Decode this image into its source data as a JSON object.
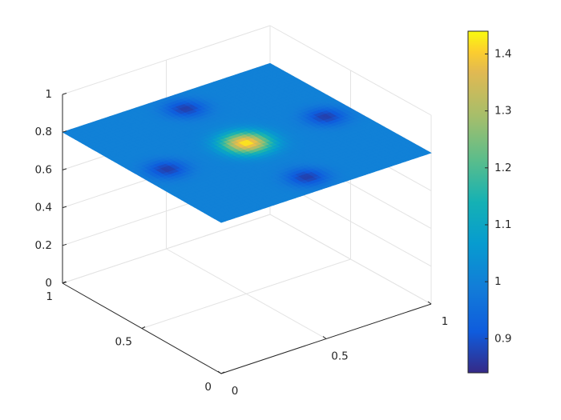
{
  "chart_data": {
    "type": "surface",
    "title": "",
    "xlabel": "",
    "ylabel": "",
    "zlabel": "",
    "x_ticks": [
      "0",
      "0.5",
      "1"
    ],
    "y_ticks": [
      "0",
      "0.5",
      "1"
    ],
    "z_ticks": [
      "0",
      "0.2",
      "0.4",
      "0.6",
      "0.8",
      "1"
    ],
    "xlim": [
      0,
      1
    ],
    "ylim": [
      0,
      1
    ],
    "zlim": [
      0,
      1
    ],
    "grid": true,
    "colormap": "parula",
    "colorbar": {
      "location": "right",
      "range": [
        0.84,
        1.44
      ],
      "ticks": [
        "0.9",
        "1",
        "1.1",
        "1.2",
        "1.3",
        "1.4"
      ]
    },
    "surface": {
      "plane_height": 0.8,
      "baseline_value": 1.0,
      "peak": {
        "x": 0.5,
        "y": 0.5,
        "value": 1.43
      },
      "dips": [
        {
          "x": 0.12,
          "y": 0.5,
          "value": 0.87
        },
        {
          "x": 0.88,
          "y": 0.5,
          "value": 0.87
        },
        {
          "x": 0.5,
          "y": 0.12,
          "value": 0.87
        },
        {
          "x": 0.5,
          "y": 0.88,
          "value": 0.87
        }
      ]
    }
  }
}
